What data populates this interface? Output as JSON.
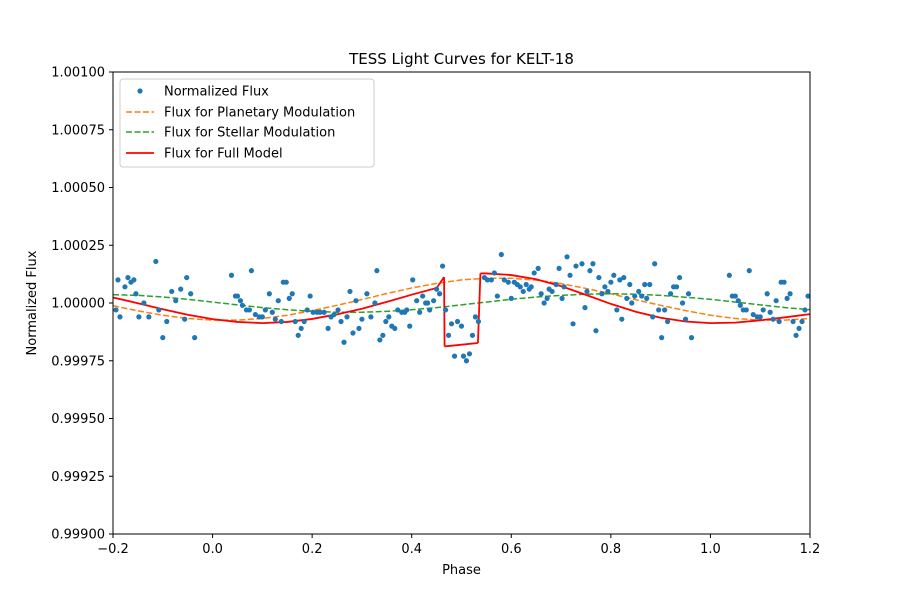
{
  "chart_data": {
    "type": "scatter",
    "title": "TESS Light Curves for KELT-18",
    "xlabel": "Phase",
    "ylabel": "Normalized Flux",
    "xlim": [
      -0.2,
      1.2
    ],
    "ylim": [
      0.999,
      1.001
    ],
    "xticks": [
      -0.2,
      0.0,
      0.2,
      0.4,
      0.6,
      0.8,
      1.0,
      1.2
    ],
    "xtick_labels": [
      "−0.2",
      "0.0",
      "0.2",
      "0.4",
      "0.6",
      "0.8",
      "1.0",
      "1.2"
    ],
    "yticks": [
      0.999,
      0.99925,
      0.9995,
      0.99975,
      1.0,
      1.00025,
      1.0005,
      1.00075,
      1.001
    ],
    "ytick_labels": [
      "0.99900",
      "0.99925",
      "0.99950",
      "0.99975",
      "1.00000",
      "1.00025",
      "1.00050",
      "1.00075",
      "1.00100"
    ],
    "grid": false,
    "legend_position": "top-left",
    "series": [
      {
        "name": "Normalized Flux",
        "kind": "scatter",
        "color": "#1f77b4",
        "points": [
          [
            -0.194,
            0.99997
          ],
          [
            -0.19,
            1.0001
          ],
          [
            -0.186,
            0.99994
          ],
          [
            -0.176,
            1.00007
          ],
          [
            -0.17,
            1.00011
          ],
          [
            -0.164,
            1.00009
          ],
          [
            -0.158,
            1.0001
          ],
          [
            -0.154,
            1.00004
          ],
          [
            -0.148,
            0.99994
          ],
          [
            -0.138,
            1.0
          ],
          [
            -0.128,
            0.99994
          ],
          [
            -0.114,
            1.00018
          ],
          [
            -0.108,
            0.99997
          ],
          [
            -0.1,
            0.99985
          ],
          [
            -0.092,
            0.99992
          ],
          [
            -0.082,
            1.00005
          ],
          [
            -0.074,
            1.00001
          ],
          [
            -0.064,
            1.00006
          ],
          [
            -0.056,
            0.99993
          ],
          [
            -0.052,
            1.00011
          ],
          [
            -0.044,
            1.00004
          ],
          [
            -0.036,
            0.99985
          ],
          [
            0.038,
            1.00012
          ],
          [
            0.046,
            1.00003
          ],
          [
            0.05,
            1.00003
          ],
          [
            0.056,
            1.00001
          ],
          [
            0.06,
            0.99999
          ],
          [
            0.068,
            0.99997
          ],
          [
            0.074,
            0.99997
          ],
          [
            0.078,
            1.00014
          ],
          [
            0.086,
            0.99995
          ],
          [
            0.094,
            0.99994
          ],
          [
            0.1,
            0.99994
          ],
          [
            0.106,
            0.99997
          ],
          [
            0.114,
            1.00004
          ],
          [
            0.12,
            0.99996
          ],
          [
            0.126,
            0.99993
          ],
          [
            0.132,
            1.00001
          ],
          [
            0.138,
            0.99992
          ],
          [
            0.142,
            1.00009
          ],
          [
            0.148,
            1.00009
          ],
          [
            0.154,
            1.00002
          ],
          [
            0.16,
            1.00004
          ],
          [
            0.166,
            0.99992
          ],
          [
            0.172,
            0.99986
          ],
          [
            0.178,
            0.99989
          ],
          [
            0.184,
            0.99992
          ],
          [
            0.19,
            0.99997
          ],
          [
            0.196,
            1.00003
          ],
          [
            0.202,
            0.99996
          ],
          [
            0.21,
            0.99996
          ],
          [
            0.216,
            0.99996
          ],
          [
            0.224,
            0.99996
          ],
          [
            0.232,
            0.99989
          ],
          [
            0.238,
            0.99994
          ],
          [
            0.244,
            0.99995
          ],
          [
            0.252,
            0.99997
          ],
          [
            0.258,
            0.99992
          ],
          [
            0.264,
            0.99983
          ],
          [
            0.27,
            0.99994
          ],
          [
            0.276,
            1.00005
          ],
          [
            0.282,
            0.99987
          ],
          [
            0.288,
            1.00001
          ],
          [
            0.294,
            0.99989
          ],
          [
            0.3,
            0.99993
          ],
          [
            0.31,
            1.00004
          ],
          [
            0.318,
            0.99994
          ],
          [
            0.326,
            1.0
          ],
          [
            0.33,
            1.00014
          ],
          [
            0.336,
            0.99984
          ],
          [
            0.342,
            0.99986
          ],
          [
            0.348,
            0.99992
          ],
          [
            0.354,
            0.99994
          ],
          [
            0.36,
            0.9999
          ],
          [
            0.366,
            0.99989
          ],
          [
            0.372,
            0.99997
          ],
          [
            0.38,
            0.99996
          ],
          [
            0.386,
            0.99996
          ],
          [
            0.39,
            0.99997
          ],
          [
            0.396,
            0.9999
          ],
          [
            0.402,
            1.0001
          ],
          [
            0.41,
            1.00001
          ],
          [
            0.416,
            0.99996
          ],
          [
            0.422,
            1.00003
          ],
          [
            0.428,
            1.0
          ],
          [
            0.432,
            1.0
          ],
          [
            0.436,
            0.99997
          ],
          [
            0.444,
            1.00001
          ],
          [
            0.45,
            1.00006
          ],
          [
            0.456,
            1.00004
          ],
          [
            0.462,
            1.00016
          ],
          [
            0.468,
            0.99997
          ],
          [
            0.474,
            0.99986
          ],
          [
            0.48,
            0.99991
          ],
          [
            0.486,
            0.99977
          ],
          [
            0.492,
            0.99992
          ],
          [
            0.5,
            0.9999
          ],
          [
            0.504,
            0.99977
          ],
          [
            0.51,
            0.99975
          ],
          [
            0.516,
            0.99978
          ],
          [
            0.522,
            0.99986
          ],
          [
            0.528,
            0.99994
          ],
          [
            0.534,
            0.99992
          ],
          [
            0.546,
            1.00011
          ],
          [
            0.552,
            1.0001
          ],
          [
            0.56,
            1.0001
          ],
          [
            0.566,
            1.00013
          ],
          [
            0.572,
            1.00003
          ],
          [
            0.58,
            1.00021
          ],
          [
            0.586,
            1.0001
          ],
          [
            0.594,
            1.00009
          ],
          [
            0.6,
            1.00002
          ],
          [
            0.606,
            1.00009
          ],
          [
            0.612,
            1.00008
          ],
          [
            0.618,
            1.00007
          ],
          [
            0.624,
            1.00005
          ],
          [
            0.63,
            1.00008
          ],
          [
            0.636,
            1.00006
          ],
          [
            0.64,
            1.00007
          ],
          [
            0.646,
            1.00013
          ],
          [
            0.654,
            1.00015
          ],
          [
            0.66,
            1.00004
          ],
          [
            0.666,
            1.0
          ],
          [
            0.672,
            1.00002
          ],
          [
            0.676,
            1.00006
          ],
          [
            0.682,
            1.00005
          ],
          [
            0.69,
            1.00008
          ],
          [
            0.696,
            1.00015
          ],
          [
            0.702,
            1.00002
          ],
          [
            0.706,
            1.00007
          ],
          [
            0.712,
            1.0002
          ],
          [
            0.718,
            1.00012
          ],
          [
            0.724,
            0.99991
          ],
          [
            0.73,
            1.00016
          ],
          [
            0.742,
            1.00017
          ],
          [
            0.748,
            0.99998
          ],
          [
            0.752,
            1.00005
          ],
          [
            0.758,
            1.00014
          ],
          [
            0.764,
            1.00017
          ],
          [
            0.77,
            0.99988
          ],
          [
            0.776,
            1.00011
          ],
          [
            0.782,
            1.00004
          ],
          [
            0.788,
            1.00007
          ],
          [
            0.794,
            1.00005
          ],
          [
            0.8,
            1.00009
          ],
          [
            0.806,
            1.00012
          ],
          [
            0.812,
            0.99997
          ],
          [
            0.818,
            1.0001
          ],
          [
            0.822,
            0.99993
          ],
          [
            0.826,
            1.00011
          ],
          [
            0.832,
            1.00002
          ],
          [
            0.838,
            1.00008
          ],
          [
            0.842,
            1.0
          ],
          [
            0.848,
            1.00003
          ],
          [
            0.856,
            1.00005
          ],
          [
            0.862,
            1.00003
          ],
          [
            0.868,
            1.00008
          ],
          [
            0.872,
            1.00002
          ],
          [
            0.878,
            1.00008
          ],
          [
            0.884,
            0.99994
          ],
          [
            0.888,
            1.00017
          ],
          [
            0.896,
            0.99997
          ],
          [
            0.902,
            0.99985
          ],
          [
            0.908,
            0.99997
          ],
          [
            0.914,
            0.99992
          ],
          [
            0.92,
            1.00004
          ],
          [
            0.926,
            1.00007
          ],
          [
            0.932,
            1.00007
          ],
          [
            0.938,
            1.00011
          ],
          [
            0.944,
            1.0
          ],
          [
            0.95,
            0.99993
          ],
          [
            0.956,
            1.00004
          ],
          [
            0.962,
            0.99985
          ],
          [
            1.038,
            1.00012
          ],
          [
            1.044,
            1.00003
          ],
          [
            1.05,
            1.00003
          ],
          [
            1.056,
            1.00001
          ],
          [
            1.06,
            0.99999
          ],
          [
            1.066,
            0.99997
          ],
          [
            1.072,
            0.99997
          ],
          [
            1.078,
            1.00014
          ],
          [
            1.086,
            0.99995
          ],
          [
            1.094,
            0.99994
          ],
          [
            1.1,
            0.99994
          ],
          [
            1.106,
            0.99997
          ],
          [
            1.114,
            1.00004
          ],
          [
            1.12,
            0.99996
          ],
          [
            1.126,
            0.99993
          ],
          [
            1.132,
            1.00001
          ],
          [
            1.138,
            0.99992
          ],
          [
            1.142,
            1.00009
          ],
          [
            1.148,
            1.00009
          ],
          [
            1.154,
            1.00002
          ],
          [
            1.16,
            1.00004
          ],
          [
            1.166,
            0.99992
          ],
          [
            1.172,
            0.99986
          ],
          [
            1.178,
            0.99989
          ],
          [
            1.184,
            0.99992
          ],
          [
            1.19,
            0.99997
          ],
          [
            1.196,
            1.00003
          ]
        ]
      },
      {
        "name": "Flux for Planetary Modulation",
        "kind": "line",
        "style": "dashed",
        "color": "#ff7f0e",
        "x": [
          -0.2,
          -0.15,
          -0.1,
          -0.05,
          0.0,
          0.05,
          0.1,
          0.15,
          0.2,
          0.25,
          0.3,
          0.35,
          0.4,
          0.45,
          0.5,
          0.55,
          0.6,
          0.65,
          0.7,
          0.75,
          0.8,
          0.85,
          0.9,
          0.95,
          1.0,
          1.05,
          1.1,
          1.15,
          1.2
        ],
        "y": [
          0.999988,
          0.999966,
          0.999947,
          0.999933,
          0.999926,
          0.999926,
          0.999933,
          0.999947,
          0.999967,
          0.99999,
          1.000015,
          1.000041,
          1.000065,
          1.000085,
          1.0001,
          1.000107,
          1.000107,
          1.000099,
          1.000084,
          1.000063,
          1.00004,
          1.000014,
          0.99999,
          0.999967,
          0.999947,
          0.999933,
          0.999926,
          0.999926,
          0.999933
        ]
      },
      {
        "name": "Flux for Stellar Modulation",
        "kind": "line",
        "style": "dashed",
        "color": "#2ca02c",
        "x": [
          -0.2,
          -0.15,
          -0.1,
          -0.05,
          0.0,
          0.05,
          0.1,
          0.15,
          0.2,
          0.25,
          0.3,
          0.35,
          0.4,
          0.45,
          0.5,
          0.55,
          0.6,
          0.65,
          0.7,
          0.75,
          0.8,
          0.85,
          0.9,
          0.95,
          1.0,
          1.05,
          1.1,
          1.15,
          1.2
        ],
        "y": [
          1.000036,
          1.000033,
          1.000026,
          1.000016,
          1.000004,
          0.999992,
          0.99998,
          0.999971,
          0.999964,
          0.99996,
          0.99996,
          0.999964,
          0.999971,
          0.99998,
          0.999992,
          1.000004,
          1.000016,
          1.000026,
          1.000033,
          1.000038,
          1.00004,
          1.000038,
          1.000033,
          1.000025,
          1.000016,
          1.000004,
          0.999992,
          0.99998,
          0.999971
        ]
      },
      {
        "name": "Flux for Full Model",
        "kind": "line",
        "style": "solid",
        "color": "#ff0000",
        "segments": [
          {
            "x": [
              -0.2,
              -0.15,
              -0.1,
              -0.05,
              0.0,
              0.05,
              0.1,
              0.15,
              0.2,
              0.25,
              0.3,
              0.35,
              0.4,
              0.45,
              0.465
            ],
            "y": [
              1.000024,
              0.999999,
              0.999973,
              0.999949,
              0.99993,
              0.999918,
              0.999913,
              0.999918,
              0.999931,
              0.999951,
              0.999975,
              1.000005,
              1.000036,
              1.000065,
              1.000112
            ]
          },
          {
            "x": [
              0.465,
              0.466
            ],
            "y": [
              1.000112,
              0.999812
            ]
          },
          {
            "x": [
              0.466,
              0.533
            ],
            "y": [
              0.999812,
              0.999827
            ]
          },
          {
            "x": [
              0.533,
              0.538
            ],
            "y": [
              0.999827,
              1.000128
            ]
          },
          {
            "x": [
              0.538,
              0.55,
              0.6,
              0.65,
              0.7,
              0.75,
              0.8,
              0.85,
              0.9,
              0.95,
              1.0,
              1.05,
              1.1,
              1.15,
              1.2
            ],
            "y": [
              1.000128,
              1.000128,
              1.000121,
              1.000103,
              1.000073,
              1.000035,
              0.999996,
              0.999962,
              0.999936,
              0.99992,
              0.999913,
              0.999915,
              0.999925,
              0.999938,
              0.999952
            ]
          }
        ]
      }
    ]
  }
}
